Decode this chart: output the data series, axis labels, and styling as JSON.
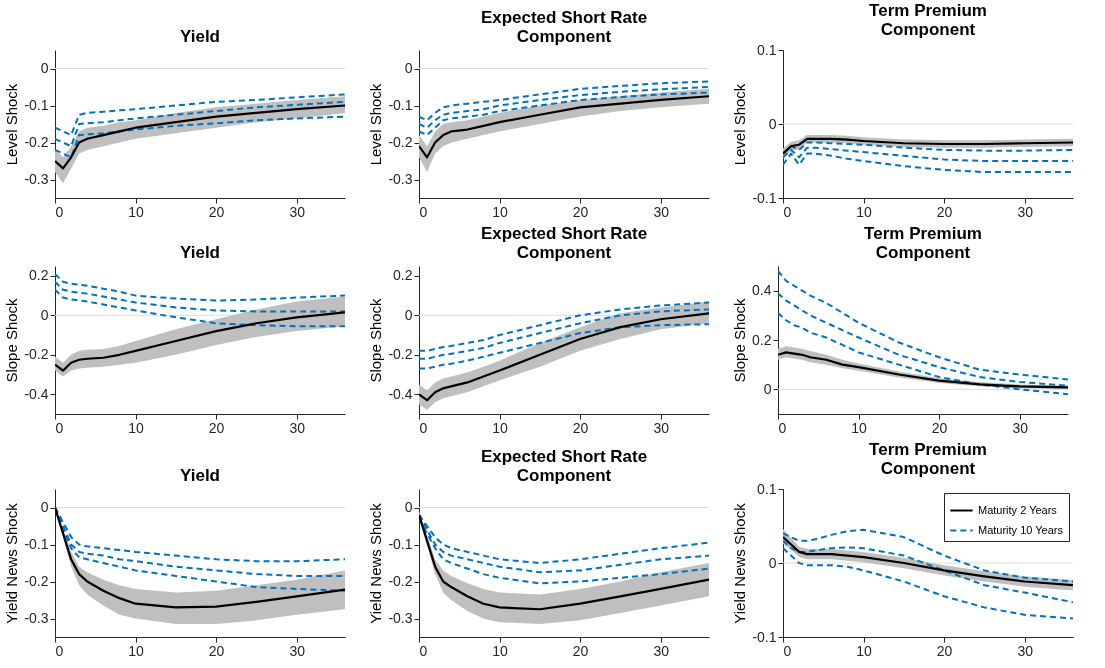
{
  "chart_data": [
    {
      "type": "line",
      "title": "Yield",
      "ylabel": "Level Shock",
      "xlim": [
        0,
        36
      ],
      "xticks": [
        0,
        10,
        20,
        30
      ],
      "ylim": [
        -0.35,
        0.05
      ],
      "yticks": [
        -0.3,
        -0.2,
        -0.1,
        0
      ],
      "ref_lines": [
        {
          "axis": "y",
          "value": 0,
          "color": "#dcdcdc"
        }
      ],
      "x": [
        0,
        1,
        2,
        3,
        4,
        6,
        8,
        10,
        15,
        20,
        25,
        30,
        36
      ],
      "series": [
        {
          "color": "#000000",
          "line_style": "solid",
          "values": [
            -0.25,
            -0.27,
            -0.24,
            -0.2,
            -0.19,
            -0.18,
            -0.17,
            -0.16,
            -0.145,
            -0.13,
            -0.12,
            -0.11,
            -0.1
          ],
          "lower": [
            -0.28,
            -0.31,
            -0.27,
            -0.23,
            -0.22,
            -0.21,
            -0.2,
            -0.19,
            -0.175,
            -0.16,
            -0.145,
            -0.135,
            -0.12
          ],
          "upper": [
            -0.22,
            -0.24,
            -0.21,
            -0.17,
            -0.16,
            -0.155,
            -0.145,
            -0.14,
            -0.12,
            -0.105,
            -0.095,
            -0.085,
            -0.075
          ]
        },
        {
          "color": "#0072bd",
          "line_style": "dashed",
          "values": [
            -0.16,
            -0.17,
            -0.18,
            -0.125,
            -0.12,
            -0.117,
            -0.113,
            -0.11,
            -0.1,
            -0.09,
            -0.085,
            -0.078,
            -0.07
          ]
        },
        {
          "color": "#0072bd",
          "line_style": "dashed",
          "values": [
            -0.19,
            -0.2,
            -0.21,
            -0.15,
            -0.148,
            -0.145,
            -0.14,
            -0.135,
            -0.125,
            -0.115,
            -0.105,
            -0.098,
            -0.09
          ]
        },
        {
          "color": "#0072bd",
          "line_style": "dashed",
          "values": [
            -0.22,
            -0.23,
            -0.24,
            -0.18,
            -0.178,
            -0.175,
            -0.17,
            -0.165,
            -0.155,
            -0.148,
            -0.14,
            -0.135,
            -0.13
          ]
        }
      ]
    },
    {
      "type": "line",
      "title": "Expected Short Rate Component",
      "ylabel": "Level Shock",
      "xlim": [
        0,
        36
      ],
      "xticks": [
        0,
        10,
        20,
        30
      ],
      "ylim": [
        -0.35,
        0.05
      ],
      "yticks": [
        -0.3,
        -0.2,
        -0.1,
        0
      ],
      "ref_lines": [
        {
          "axis": "y",
          "value": 0,
          "color": "#dcdcdc"
        }
      ],
      "x": [
        0,
        1,
        2,
        3,
        4,
        6,
        8,
        10,
        15,
        20,
        25,
        30,
        36
      ],
      "series": [
        {
          "color": "#000000",
          "line_style": "solid",
          "values": [
            -0.21,
            -0.24,
            -0.2,
            -0.18,
            -0.17,
            -0.165,
            -0.155,
            -0.145,
            -0.125,
            -0.105,
            -0.095,
            -0.085,
            -0.075
          ],
          "lower": [
            -0.24,
            -0.28,
            -0.23,
            -0.21,
            -0.2,
            -0.19,
            -0.18,
            -0.17,
            -0.15,
            -0.13,
            -0.115,
            -0.105,
            -0.095
          ],
          "upper": [
            -0.18,
            -0.21,
            -0.17,
            -0.15,
            -0.145,
            -0.14,
            -0.13,
            -0.12,
            -0.1,
            -0.085,
            -0.075,
            -0.065,
            -0.055
          ]
        },
        {
          "color": "#0072bd",
          "line_style": "dashed",
          "values": [
            -0.13,
            -0.14,
            -0.12,
            -0.105,
            -0.1,
            -0.095,
            -0.09,
            -0.085,
            -0.07,
            -0.055,
            -0.047,
            -0.04,
            -0.035
          ]
        },
        {
          "color": "#0072bd",
          "line_style": "dashed",
          "values": [
            -0.15,
            -0.16,
            -0.14,
            -0.125,
            -0.12,
            -0.115,
            -0.11,
            -0.1,
            -0.085,
            -0.072,
            -0.063,
            -0.056,
            -0.05
          ]
        },
        {
          "color": "#0072bd",
          "line_style": "dashed",
          "values": [
            -0.17,
            -0.18,
            -0.16,
            -0.14,
            -0.135,
            -0.13,
            -0.125,
            -0.115,
            -0.1,
            -0.085,
            -0.077,
            -0.07,
            -0.065
          ]
        }
      ]
    },
    {
      "type": "line",
      "title": "Term Premium Component",
      "ylabel": "Level Shock",
      "xlim": [
        0,
        36
      ],
      "xticks": [
        0,
        10,
        20,
        30
      ],
      "ylim": [
        -0.1,
        0.1
      ],
      "yticks": [
        -0.1,
        0,
        0.1
      ],
      "ref_lines": [
        {
          "axis": "y",
          "value": 0,
          "color": "#dcdcdc"
        }
      ],
      "x": [
        0,
        1,
        2,
        3,
        4,
        6,
        8,
        10,
        15,
        20,
        25,
        30,
        36
      ],
      "series": [
        {
          "color": "#000000",
          "line_style": "solid",
          "values": [
            -0.04,
            -0.03,
            -0.028,
            -0.02,
            -0.02,
            -0.02,
            -0.021,
            -0.023,
            -0.026,
            -0.027,
            -0.027,
            -0.026,
            -0.025
          ],
          "lower": [
            -0.047,
            -0.036,
            -0.034,
            -0.025,
            -0.025,
            -0.025,
            -0.026,
            -0.028,
            -0.031,
            -0.032,
            -0.032,
            -0.031,
            -0.03
          ],
          "upper": [
            -0.033,
            -0.024,
            -0.022,
            -0.015,
            -0.015,
            -0.015,
            -0.016,
            -0.018,
            -0.021,
            -0.022,
            -0.022,
            -0.021,
            -0.02
          ]
        },
        {
          "color": "#0072bd",
          "line_style": "dashed",
          "values": [
            -0.04,
            -0.03,
            -0.035,
            -0.025,
            -0.025,
            -0.026,
            -0.027,
            -0.028,
            -0.032,
            -0.035,
            -0.036,
            -0.036,
            -0.035
          ]
        },
        {
          "color": "#0072bd",
          "line_style": "dashed",
          "values": [
            -0.045,
            -0.035,
            -0.045,
            -0.032,
            -0.032,
            -0.034,
            -0.036,
            -0.038,
            -0.043,
            -0.048,
            -0.05,
            -0.05,
            -0.05
          ]
        },
        {
          "color": "#0072bd",
          "line_style": "dashed",
          "values": [
            -0.055,
            -0.04,
            -0.055,
            -0.04,
            -0.04,
            -0.043,
            -0.047,
            -0.05,
            -0.057,
            -0.062,
            -0.065,
            -0.065,
            -0.065
          ]
        }
      ]
    },
    {
      "type": "line",
      "title": "Yield",
      "ylabel": "Slope Shock",
      "xlim": [
        0,
        36
      ],
      "xticks": [
        0,
        10,
        20,
        30
      ],
      "ylim": [
        -0.5,
        0.25
      ],
      "yticks": [
        -0.4,
        -0.2,
        0,
        0.2
      ],
      "ref_lines": [
        {
          "axis": "y",
          "value": 0,
          "color": "#dcdcdc"
        }
      ],
      "x": [
        0,
        1,
        2,
        3,
        4,
        6,
        8,
        10,
        15,
        20,
        25,
        30,
        36
      ],
      "series": [
        {
          "color": "#000000",
          "line_style": "solid",
          "values": [
            -0.25,
            -0.28,
            -0.24,
            -0.225,
            -0.22,
            -0.215,
            -0.2,
            -0.18,
            -0.13,
            -0.08,
            -0.04,
            -0.01,
            0.015
          ],
          "lower": [
            -0.28,
            -0.31,
            -0.28,
            -0.27,
            -0.265,
            -0.26,
            -0.25,
            -0.24,
            -0.2,
            -0.15,
            -0.11,
            -0.08,
            -0.055
          ],
          "upper": [
            -0.21,
            -0.24,
            -0.2,
            -0.18,
            -0.175,
            -0.17,
            -0.155,
            -0.13,
            -0.07,
            -0.02,
            0.03,
            0.07,
            0.095
          ]
        },
        {
          "color": "#0072bd",
          "line_style": "dashed",
          "values": [
            0.21,
            0.17,
            0.16,
            0.155,
            0.15,
            0.135,
            0.12,
            0.1,
            0.085,
            0.075,
            0.08,
            0.09,
            0.1
          ]
        },
        {
          "color": "#0072bd",
          "line_style": "dashed",
          "values": [
            0.17,
            0.13,
            0.12,
            0.115,
            0.11,
            0.095,
            0.08,
            0.065,
            0.04,
            0.025,
            0.02,
            0.02,
            0.02
          ]
        },
        {
          "color": "#0072bd",
          "line_style": "dashed",
          "values": [
            0.13,
            0.09,
            0.08,
            0.075,
            0.07,
            0.055,
            0.04,
            0.025,
            -0.01,
            -0.04,
            -0.05,
            -0.055,
            -0.055
          ]
        }
      ]
    },
    {
      "type": "line",
      "title": "Expected Short Rate Component",
      "ylabel": "Slope Shock",
      "xlim": [
        0,
        36
      ],
      "xticks": [
        0,
        10,
        20,
        30
      ],
      "ylim": [
        -0.5,
        0.25
      ],
      "yticks": [
        -0.4,
        -0.2,
        0,
        0.2
      ],
      "ref_lines": [
        {
          "axis": "y",
          "value": 0,
          "color": "#dcdcdc"
        }
      ],
      "x": [
        0,
        1,
        2,
        3,
        4,
        6,
        8,
        10,
        15,
        20,
        25,
        30,
        36
      ],
      "series": [
        {
          "color": "#000000",
          "line_style": "solid",
          "values": [
            -0.4,
            -0.43,
            -0.39,
            -0.37,
            -0.36,
            -0.34,
            -0.31,
            -0.28,
            -0.2,
            -0.12,
            -0.06,
            -0.02,
            0.01
          ],
          "lower": [
            -0.45,
            -0.48,
            -0.44,
            -0.42,
            -0.41,
            -0.39,
            -0.36,
            -0.33,
            -0.26,
            -0.18,
            -0.12,
            -0.07,
            -0.04
          ],
          "upper": [
            -0.35,
            -0.38,
            -0.34,
            -0.32,
            -0.31,
            -0.29,
            -0.26,
            -0.23,
            -0.14,
            -0.06,
            0.01,
            0.04,
            0.07
          ]
        },
        {
          "color": "#0072bd",
          "line_style": "dashed",
          "values": [
            -0.18,
            -0.18,
            -0.17,
            -0.16,
            -0.155,
            -0.14,
            -0.125,
            -0.1,
            -0.05,
            0,
            0.03,
            0.05,
            0.065
          ]
        },
        {
          "color": "#0072bd",
          "line_style": "dashed",
          "values": [
            -0.22,
            -0.22,
            -0.21,
            -0.2,
            -0.195,
            -0.18,
            -0.165,
            -0.14,
            -0.09,
            -0.04,
            0,
            0.02,
            0.03
          ]
        },
        {
          "color": "#0072bd",
          "line_style": "dashed",
          "values": [
            -0.27,
            -0.27,
            -0.26,
            -0.25,
            -0.245,
            -0.23,
            -0.21,
            -0.19,
            -0.14,
            -0.09,
            -0.06,
            -0.05,
            -0.045
          ]
        }
      ]
    },
    {
      "type": "line",
      "title": "Term Premium Component",
      "ylabel": "Slope Shock",
      "xlim": [
        0,
        36
      ],
      "xticks": [
        0,
        10,
        20,
        30
      ],
      "ylim": [
        -0.1,
        0.5
      ],
      "yticks": [
        0,
        0.2,
        0.4
      ],
      "ref_lines": [
        {
          "axis": "y",
          "value": 0,
          "color": "#dcdcdc"
        }
      ],
      "x": [
        0,
        1,
        2,
        3,
        4,
        6,
        8,
        10,
        15,
        20,
        25,
        30,
        36
      ],
      "series": [
        {
          "color": "#000000",
          "line_style": "solid",
          "values": [
            0.14,
            0.15,
            0.145,
            0.14,
            0.13,
            0.12,
            0.1,
            0.09,
            0.06,
            0.035,
            0.02,
            0.012,
            0.008
          ],
          "lower": [
            0.12,
            0.13,
            0.125,
            0.12,
            0.11,
            0.1,
            0.085,
            0.075,
            0.048,
            0.026,
            0.012,
            0.004,
            0.0
          ],
          "upper": [
            0.165,
            0.175,
            0.17,
            0.165,
            0.155,
            0.14,
            0.12,
            0.105,
            0.072,
            0.045,
            0.03,
            0.02,
            0.016
          ]
        },
        {
          "color": "#0072bd",
          "line_style": "dashed",
          "values": [
            0.48,
            0.44,
            0.42,
            0.4,
            0.38,
            0.35,
            0.31,
            0.27,
            0.19,
            0.13,
            0.08,
            0.06,
            0.04
          ]
        },
        {
          "color": "#0072bd",
          "line_style": "dashed",
          "values": [
            0.39,
            0.36,
            0.34,
            0.32,
            0.3,
            0.27,
            0.24,
            0.21,
            0.14,
            0.09,
            0.05,
            0.03,
            0.015
          ]
        },
        {
          "color": "#0072bd",
          "line_style": "dashed",
          "values": [
            0.31,
            0.28,
            0.26,
            0.25,
            0.23,
            0.21,
            0.18,
            0.15,
            0.1,
            0.05,
            0.02,
            0.0,
            -0.02
          ]
        }
      ]
    },
    {
      "type": "line",
      "title": "Yield",
      "ylabel": "Yield News Shock",
      "xlim": [
        0,
        36
      ],
      "xticks": [
        0,
        10,
        20,
        30
      ],
      "ylim": [
        -0.35,
        0.05
      ],
      "yticks": [
        -0.3,
        -0.2,
        -0.1,
        0
      ],
      "ref_lines": [
        {
          "axis": "y",
          "value": 0,
          "color": "#dcdcdc"
        }
      ],
      "x": [
        0,
        1,
        2,
        3,
        4,
        6,
        8,
        10,
        15,
        20,
        25,
        30,
        36
      ],
      "series": [
        {
          "color": "#000000",
          "line_style": "solid",
          "values": [
            0,
            -0.07,
            -0.14,
            -0.18,
            -0.2,
            -0.225,
            -0.245,
            -0.26,
            -0.27,
            -0.268,
            -0.255,
            -0.24,
            -0.222
          ],
          "lower": [
            0,
            -0.08,
            -0.16,
            -0.21,
            -0.235,
            -0.265,
            -0.29,
            -0.3,
            -0.315,
            -0.315,
            -0.305,
            -0.29,
            -0.275
          ],
          "upper": [
            0,
            -0.06,
            -0.12,
            -0.16,
            -0.175,
            -0.195,
            -0.21,
            -0.22,
            -0.23,
            -0.225,
            -0.21,
            -0.195,
            -0.17
          ]
        },
        {
          "color": "#0072bd",
          "line_style": "dashed",
          "values": [
            0,
            -0.04,
            -0.08,
            -0.1,
            -0.105,
            -0.11,
            -0.115,
            -0.12,
            -0.13,
            -0.14,
            -0.145,
            -0.145,
            -0.14
          ]
        },
        {
          "color": "#0072bd",
          "line_style": "dashed",
          "values": [
            0,
            -0.05,
            -0.1,
            -0.12,
            -0.125,
            -0.13,
            -0.14,
            -0.145,
            -0.16,
            -0.17,
            -0.18,
            -0.185,
            -0.185
          ]
        },
        {
          "color": "#0072bd",
          "line_style": "dashed",
          "values": [
            0,
            -0.06,
            -0.11,
            -0.135,
            -0.14,
            -0.15,
            -0.16,
            -0.17,
            -0.185,
            -0.2,
            -0.215,
            -0.22,
            -0.225
          ]
        }
      ]
    },
    {
      "type": "line",
      "title": "Expected Short Rate Component",
      "ylabel": "Yield News Shock",
      "xlim": [
        0,
        36
      ],
      "xticks": [
        0,
        10,
        20,
        30
      ],
      "ylim": [
        -0.35,
        0.05
      ],
      "yticks": [
        -0.3,
        -0.2,
        -0.1,
        0
      ],
      "ref_lines": [
        {
          "axis": "y",
          "value": 0,
          "color": "#dcdcdc"
        }
      ],
      "x": [
        0,
        1,
        2,
        3,
        4,
        6,
        8,
        10,
        15,
        20,
        25,
        30,
        36
      ],
      "series": [
        {
          "color": "#000000",
          "line_style": "solid",
          "values": [
            -0.02,
            -0.09,
            -0.16,
            -0.2,
            -0.215,
            -0.24,
            -0.26,
            -0.27,
            -0.275,
            -0.26,
            -0.24,
            -0.22,
            -0.195
          ],
          "lower": [
            -0.03,
            -0.1,
            -0.18,
            -0.23,
            -0.25,
            -0.28,
            -0.3,
            -0.31,
            -0.315,
            -0.305,
            -0.285,
            -0.265,
            -0.24
          ],
          "upper": [
            -0.01,
            -0.075,
            -0.14,
            -0.17,
            -0.185,
            -0.205,
            -0.22,
            -0.23,
            -0.235,
            -0.22,
            -0.2,
            -0.175,
            -0.15
          ]
        },
        {
          "color": "#0072bd",
          "line_style": "dashed",
          "values": [
            -0.02,
            -0.05,
            -0.08,
            -0.1,
            -0.11,
            -0.12,
            -0.13,
            -0.14,
            -0.15,
            -0.14,
            -0.125,
            -0.11,
            -0.095
          ]
        },
        {
          "color": "#0072bd",
          "line_style": "dashed",
          "values": [
            -0.02,
            -0.06,
            -0.1,
            -0.12,
            -0.13,
            -0.14,
            -0.15,
            -0.16,
            -0.175,
            -0.17,
            -0.155,
            -0.14,
            -0.13
          ]
        },
        {
          "color": "#0072bd",
          "line_style": "dashed",
          "values": [
            -0.03,
            -0.07,
            -0.11,
            -0.14,
            -0.15,
            -0.165,
            -0.18,
            -0.19,
            -0.205,
            -0.2,
            -0.19,
            -0.18,
            -0.165
          ]
        }
      ]
    },
    {
      "type": "line",
      "title": "Term Premium Component",
      "ylabel": "Yield News Shock",
      "xlim": [
        0,
        36
      ],
      "xticks": [
        0,
        10,
        20,
        30
      ],
      "ylim": [
        -0.1,
        0.1
      ],
      "yticks": [
        -0.1,
        0,
        0.1
      ],
      "ref_lines": [
        {
          "axis": "y",
          "value": 0,
          "color": "#dcdcdc"
        }
      ],
      "legend": "top right",
      "x": [
        0,
        1,
        2,
        3,
        4,
        6,
        8,
        10,
        15,
        20,
        25,
        30,
        36
      ],
      "series": [
        {
          "name": "Maturity 2 Years",
          "color": "#000000",
          "line_style": "solid",
          "values": [
            0.035,
            0.025,
            0.015,
            0.012,
            0.012,
            0.012,
            0.01,
            0.008,
            0.0,
            -0.01,
            -0.018,
            -0.025,
            -0.03
          ],
          "lower": [
            0.026,
            0.018,
            0.008,
            0.005,
            0.005,
            0.005,
            0.003,
            0.001,
            -0.007,
            -0.017,
            -0.025,
            -0.032,
            -0.037
          ],
          "upper": [
            0.046,
            0.034,
            0.022,
            0.019,
            0.019,
            0.019,
            0.017,
            0.015,
            0.007,
            -0.003,
            -0.011,
            -0.018,
            -0.023
          ]
        },
        {
          "name": "Maturity 10 Years",
          "color": "#0072bd",
          "line_style": "dashed",
          "values": [
            0.04,
            0.035,
            0.03,
            0.03,
            0.032,
            0.038,
            0.043,
            0.045,
            0.035,
            0.01,
            -0.01,
            -0.02,
            -0.025
          ]
        },
        {
          "color": "#0072bd",
          "line_style": "dashed",
          "values": [
            0.03,
            0.02,
            0.015,
            0.015,
            0.017,
            0.02,
            0.021,
            0.02,
            0.01,
            -0.01,
            -0.03,
            -0.04,
            -0.053
          ]
        },
        {
          "color": "#0072bd",
          "line_style": "dashed",
          "values": [
            0.02,
            0.01,
            0.0,
            -0.003,
            -0.003,
            -0.003,
            -0.005,
            -0.01,
            -0.025,
            -0.045,
            -0.06,
            -0.07,
            -0.075
          ]
        }
      ]
    }
  ]
}
